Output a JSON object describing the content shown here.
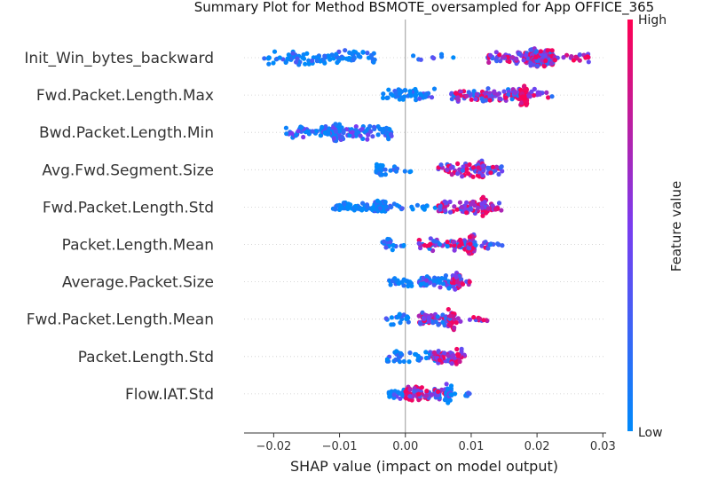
{
  "chart_data": {
    "type": "scatter",
    "subtype": "shap-beeswarm",
    "title": "Summary Plot for Method BSMOTE_oversampled for App OFFICE_365",
    "xlabel": "SHAP value (impact on model output)",
    "ylabel": "",
    "xlim": [
      -0.0245,
      0.0305
    ],
    "xticks": [
      -0.02,
      -0.01,
      0.0,
      0.01,
      0.02,
      0.03
    ],
    "xtick_labels": [
      "−0.02",
      "−0.01",
      "0.00",
      "0.01",
      "0.02",
      "0.03"
    ],
    "features": [
      "Init_Win_bytes_backward",
      "Fwd.Packet.Length.Max",
      "Bwd.Packet.Length.Min",
      "Avg.Fwd.Segment.Size",
      "Fwd.Packet.Length.Std",
      "Packet.Length.Mean",
      "Average.Packet.Size",
      "Fwd.Packet.Length.Mean",
      "Packet.Length.Std",
      "Flow.IAT.Std"
    ],
    "clusters": [
      [
        [
          -0.0215,
          -0.0045,
          100,
          0.55,
          0.0
        ],
        [
          0.001,
          0.0085,
          8,
          0.3,
          0.1
        ],
        [
          0.0125,
          0.019,
          60,
          0.45,
          0.55
        ],
        [
          0.019,
          0.0225,
          160,
          0.7,
          0.45
        ],
        [
          0.0225,
          0.028,
          20,
          0.3,
          0.7
        ]
      ],
      [
        [
          -0.0035,
          0.0045,
          55,
          0.5,
          0.05
        ],
        [
          0.007,
          0.0175,
          110,
          0.45,
          0.35
        ],
        [
          0.0175,
          0.0185,
          50,
          0.85,
          0.9
        ],
        [
          0.0185,
          0.0225,
          14,
          0.4,
          0.5
        ]
      ],
      [
        [
          -0.0185,
          -0.011,
          50,
          0.45,
          0.25
        ],
        [
          -0.011,
          -0.01,
          55,
          0.8,
          0.15
        ],
        [
          -0.01,
          -0.002,
          75,
          0.55,
          0.2
        ]
      ],
      [
        [
          -0.0045,
          -0.003,
          30,
          0.4,
          0.0
        ],
        [
          -0.0025,
          0.001,
          8,
          0.15,
          0.0
        ],
        [
          0.005,
          0.011,
          45,
          0.5,
          0.55
        ],
        [
          0.011,
          0.012,
          40,
          0.8,
          0.65
        ],
        [
          0.012,
          0.015,
          16,
          0.3,
          0.5
        ]
      ],
      [
        [
          -0.011,
          -0.0035,
          60,
          0.3,
          0.0
        ],
        [
          -0.005,
          -0.003,
          40,
          0.6,
          0.0
        ],
        [
          -0.003,
          0.005,
          20,
          0.15,
          0.0
        ],
        [
          0.005,
          0.0115,
          60,
          0.5,
          0.5
        ],
        [
          0.0115,
          0.0125,
          40,
          0.8,
          0.6
        ],
        [
          0.0125,
          0.015,
          16,
          0.3,
          0.55
        ]
      ],
      [
        [
          -0.0035,
          0.0,
          20,
          0.4,
          0.0
        ],
        [
          0.002,
          0.0095,
          60,
          0.4,
          0.35
        ],
        [
          0.0095,
          0.0105,
          45,
          0.85,
          0.5
        ],
        [
          0.0105,
          0.015,
          14,
          0.3,
          0.4
        ]
      ],
      [
        [
          -0.0025,
          0.001,
          25,
          0.35,
          0.05
        ],
        [
          0.002,
          0.007,
          50,
          0.45,
          0.3
        ],
        [
          0.007,
          0.0085,
          40,
          0.7,
          0.55
        ],
        [
          0.0085,
          0.01,
          6,
          0.3,
          0.5
        ]
      ],
      [
        [
          -0.003,
          0.001,
          18,
          0.35,
          0.05
        ],
        [
          0.002,
          0.0065,
          60,
          0.5,
          0.35
        ],
        [
          0.0065,
          0.0075,
          40,
          0.8,
          0.55
        ],
        [
          0.0075,
          0.0125,
          14,
          0.3,
          0.65
        ]
      ],
      [
        [
          -0.003,
          0.0045,
          40,
          0.4,
          0.05
        ],
        [
          0.004,
          0.007,
          50,
          0.5,
          0.55
        ],
        [
          0.007,
          0.009,
          30,
          0.65,
          0.65
        ]
      ],
      [
        [
          -0.0025,
          0.0,
          25,
          0.45,
          0.1
        ],
        [
          0.0,
          0.004,
          55,
          0.55,
          0.55
        ],
        [
          0.004,
          0.0065,
          25,
          0.6,
          0.35
        ],
        [
          0.006,
          0.007,
          35,
          0.85,
          0.15
        ],
        [
          0.007,
          0.01,
          6,
          0.2,
          0.1
        ]
      ]
    ],
    "colorbar": {
      "label": "Feature value",
      "high_label": "High",
      "low_label": "Low",
      "low_color": "#008afb",
      "mid_color": "#7a3cf0",
      "high_color": "#ff0052"
    },
    "zero_line_color": "#999999"
  }
}
